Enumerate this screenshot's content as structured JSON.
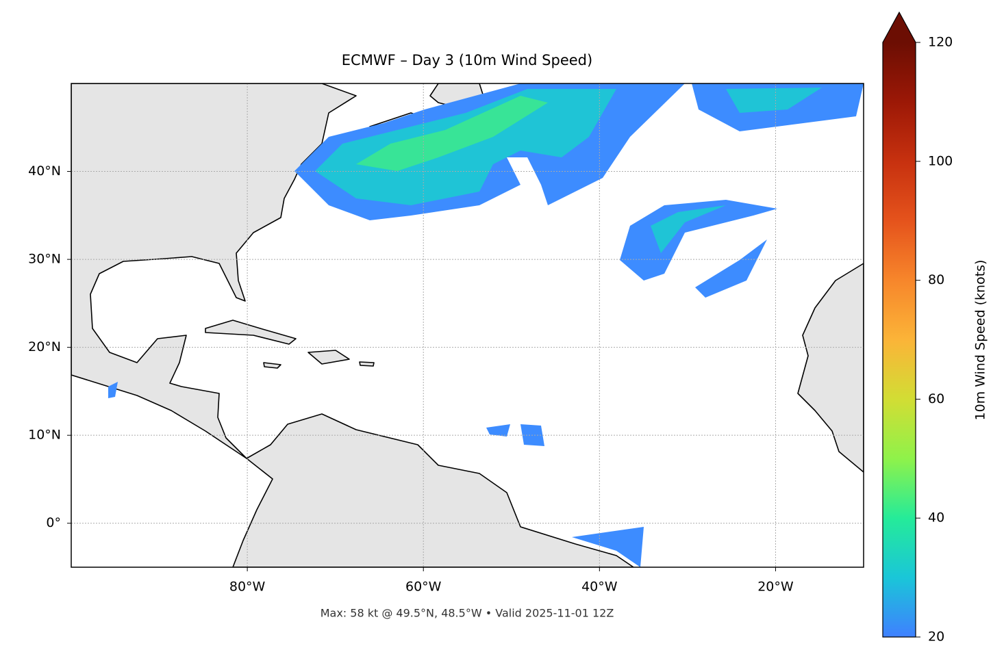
{
  "chart_data": {
    "type": "map",
    "title": "ECMWF – Day 3 (10m Wind Speed)",
    "annotation": "Max: 58 kt @ 49.5°N, 48.5°W • Valid 2025-11-01 12Z",
    "xlim": [
      -100,
      -10
    ],
    "ylim": [
      -5,
      50
    ],
    "xticks": [
      {
        "value": -80,
        "label": "80°W"
      },
      {
        "value": -60,
        "label": "60°W"
      },
      {
        "value": -40,
        "label": "40°W"
      },
      {
        "value": -20,
        "label": "20°W"
      }
    ],
    "yticks": [
      {
        "value": 0,
        "label": "0°"
      },
      {
        "value": 10,
        "label": "10°N"
      },
      {
        "value": 20,
        "label": "20°N"
      },
      {
        "value": 30,
        "label": "30°N"
      },
      {
        "value": 40,
        "label": "40°N"
      }
    ],
    "grid": true,
    "colorbar": {
      "label": "10m Wind Speed (knots)",
      "lim": [
        20,
        120
      ],
      "ticks": [
        20,
        40,
        60,
        80,
        100,
        120
      ]
    }
  }
}
